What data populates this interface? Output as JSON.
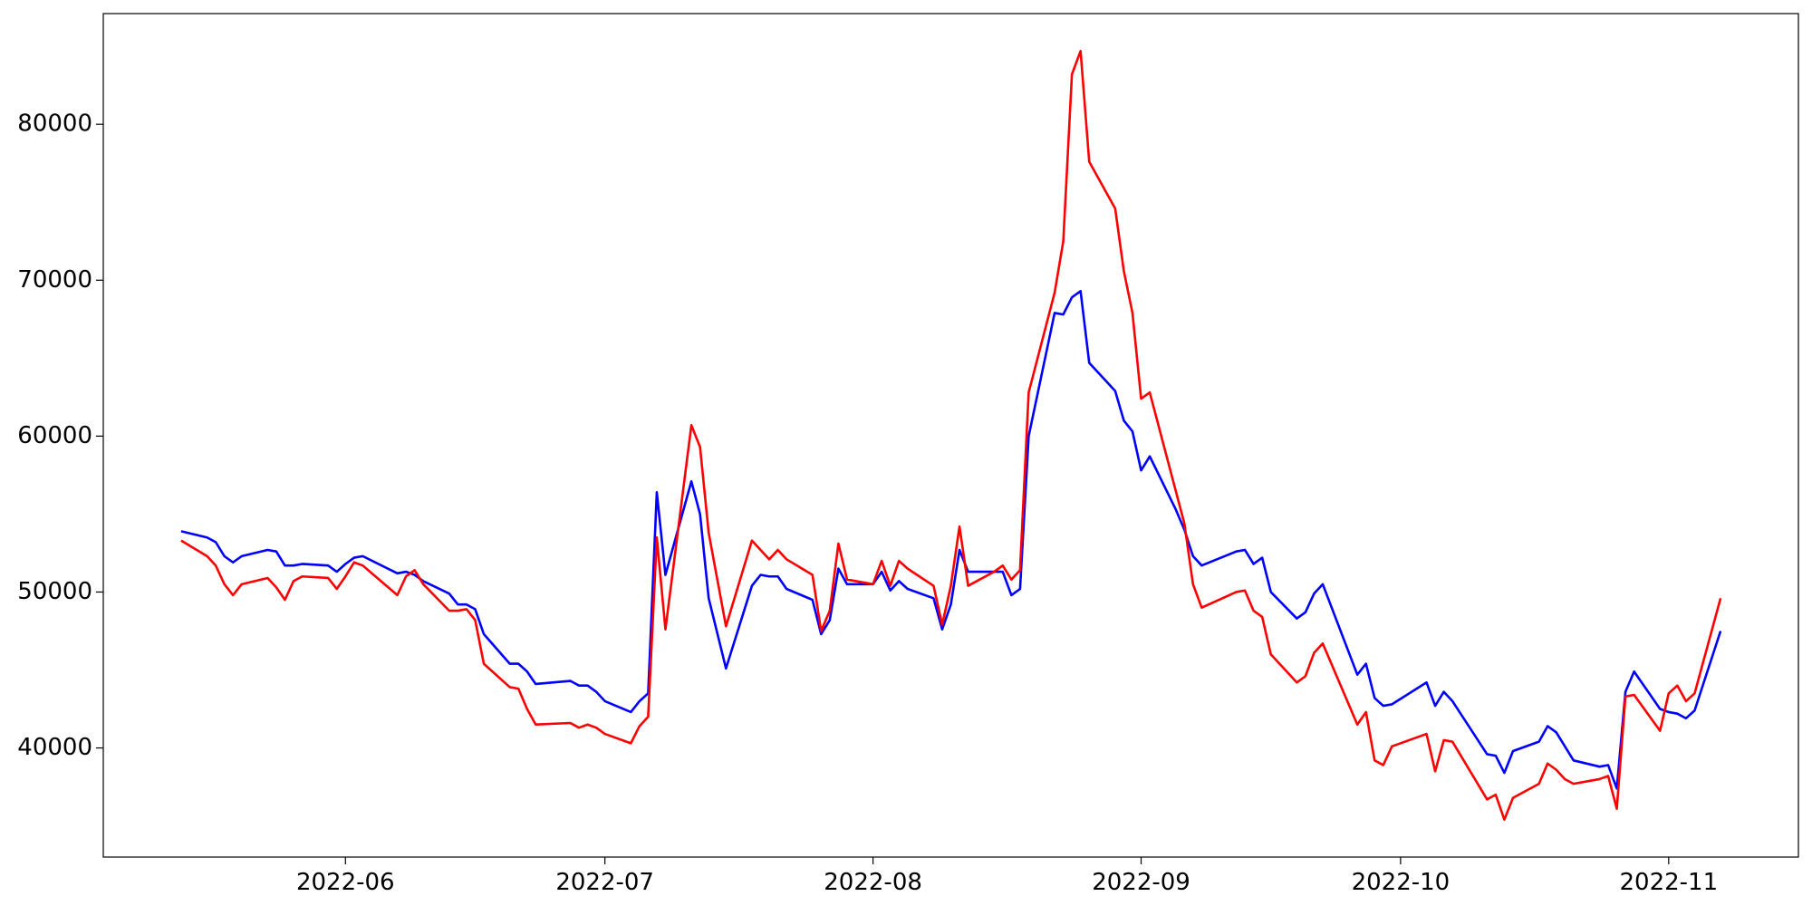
{
  "chart_data": {
    "type": "line",
    "x": [
      133,
      136,
      137,
      138,
      139,
      140,
      143,
      144,
      145,
      146,
      147,
      150,
      151,
      152,
      153,
      154,
      158,
      159,
      160,
      161,
      164,
      165,
      166,
      167,
      168,
      171,
      172,
      173,
      174,
      178,
      179,
      180,
      181,
      182,
      185,
      186,
      187,
      188,
      189,
      192,
      193,
      194,
      196,
      199,
      200,
      201,
      202,
      203,
      206,
      207,
      208,
      209,
      210,
      213,
      214,
      215,
      216,
      217,
      220,
      221,
      222,
      223,
      224,
      227,
      228,
      229,
      230,
      231,
      234,
      235,
      236,
      237,
      238,
      241,
      242,
      243,
      244,
      245,
      248,
      249,
      250,
      251,
      255,
      256,
      257,
      258,
      259,
      262,
      263,
      264,
      265,
      269,
      270,
      271,
      272,
      273,
      277,
      278,
      279,
      280,
      284,
      285,
      286,
      287,
      290,
      291,
      292,
      293,
      294,
      297,
      298,
      299,
      300,
      301,
      304,
      305,
      306,
      307,
      308,
      311
    ],
    "series": [
      {
        "color": "#0000ff",
        "values": [
          53900,
          53500,
          53200,
          52300,
          51900,
          52300,
          52700,
          52600,
          51700,
          51700,
          51800,
          51700,
          51300,
          51800,
          52200,
          52300,
          51200,
          51300,
          51100,
          50700,
          49900,
          49200,
          49200,
          48900,
          47300,
          45400,
          45400,
          44900,
          44100,
          44300,
          44000,
          44000,
          43600,
          43000,
          42300,
          43000,
          43500,
          56400,
          51100,
          57100,
          55000,
          49600,
          45100,
          50400,
          51100,
          51000,
          51000,
          50200,
          49500,
          47300,
          48200,
          51500,
          50500,
          50500,
          51300,
          50100,
          50700,
          50200,
          49600,
          47600,
          49200,
          52700,
          51300,
          51300,
          51300,
          49800,
          50200,
          60000,
          67900,
          67800,
          68900,
          69300,
          64700,
          62900,
          61000,
          60300,
          57800,
          58700,
          55300,
          54000,
          52300,
          51700,
          52600,
          52700,
          51800,
          52200,
          50000,
          48300,
          48700,
          49900,
          50500,
          44700,
          45400,
          43200,
          42700,
          42800,
          44200,
          42700,
          43600,
          43000,
          39600,
          39500,
          38400,
          39800,
          40400,
          41400,
          41000,
          40100,
          39200,
          38800,
          38900,
          37400,
          43600,
          44900,
          42500,
          42300,
          42200,
          41900,
          42400,
          47500
        ]
      },
      {
        "color": "#ff0000",
        "values": [
          53300,
          52300,
          51700,
          50500,
          49800,
          50500,
          50900,
          50300,
          49500,
          50700,
          51000,
          50900,
          50200,
          51000,
          51900,
          51700,
          49800,
          51000,
          51400,
          50500,
          48800,
          48800,
          48900,
          48200,
          45400,
          43900,
          43800,
          42500,
          41500,
          41600,
          41300,
          41500,
          41300,
          40900,
          40300,
          41400,
          42000,
          53500,
          47600,
          60700,
          59300,
          53800,
          47800,
          53300,
          52700,
          52100,
          52700,
          52100,
          51100,
          47500,
          48800,
          53100,
          50800,
          50500,
          52000,
          50400,
          52000,
          51500,
          50400,
          47900,
          50400,
          54200,
          50400,
          51300,
          51700,
          50800,
          51400,
          62800,
          69200,
          72500,
          83200,
          84700,
          77600,
          74600,
          70600,
          67900,
          62400,
          62800,
          56500,
          54400,
          50500,
          49000,
          50000,
          50100,
          48800,
          48400,
          46000,
          44200,
          44600,
          46100,
          46700,
          41500,
          42300,
          39200,
          38900,
          40100,
          40900,
          38500,
          40500,
          40400,
          36700,
          37000,
          35400,
          36800,
          37700,
          39000,
          38600,
          38000,
          37700,
          38000,
          38200,
          36100,
          43300,
          43400,
          41100,
          43500,
          44000,
          43000,
          43500,
          49600
        ]
      }
    ],
    "xlim": [
      124,
      320
    ],
    "xticks": [
      {
        "value": 152,
        "label": "2022-06"
      },
      {
        "value": 182,
        "label": "2022-07"
      },
      {
        "value": 213,
        "label": "2022-08"
      },
      {
        "value": 244,
        "label": "2022-09"
      },
      {
        "value": 274,
        "label": "2022-10"
      },
      {
        "value": 305,
        "label": "2022-11"
      }
    ],
    "ylim": [
      33000,
      87100
    ],
    "yticks": [
      40000,
      50000,
      60000,
      70000,
      80000
    ]
  }
}
